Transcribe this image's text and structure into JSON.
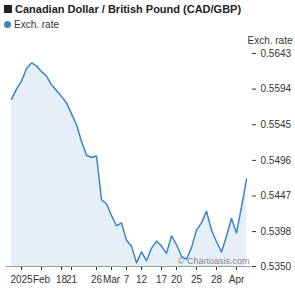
{
  "chart_data": {
    "type": "line",
    "title": "Canadian Dollar / British Pound (CAD/GBP)",
    "y_label": "Exch. rate",
    "annotations": [
      "© Chartoasis.com"
    ],
    "categories": [
      null,
      null,
      "2025",
      null,
      null,
      null,
      "Feb",
      null,
      null,
      null,
      "18",
      null,
      "21",
      null,
      null,
      null,
      null,
      "26",
      null,
      null,
      "Mar",
      null,
      null,
      "7",
      null,
      null,
      "12",
      null,
      null,
      null,
      "17",
      null,
      null,
      "20",
      null,
      null,
      null,
      "25",
      null,
      null,
      null,
      "28",
      null,
      null,
      null,
      "Apr",
      null,
      null
    ],
    "series": [
      {
        "name": "Exch. rate",
        "color": "#3d85c6",
        "values": [
          0.558,
          0.5594,
          0.5605,
          0.5622,
          0.563,
          0.5626,
          0.5618,
          0.5612,
          0.56,
          0.5592,
          0.5584,
          0.5575,
          0.556,
          0.5545,
          0.5522,
          0.5503,
          0.55,
          0.5502,
          0.5442,
          0.5436,
          0.542,
          0.5406,
          0.541,
          0.5386,
          0.5378,
          0.5355,
          0.537,
          0.5358,
          0.5375,
          0.5385,
          0.5378,
          0.5368,
          0.5392,
          0.538,
          0.5364,
          0.536,
          0.5376,
          0.54,
          0.541,
          0.5426,
          0.54,
          0.5384,
          0.537,
          0.5392,
          0.5416,
          0.5396,
          0.5432,
          0.547
        ]
      }
    ],
    "ylim": [
      0.535,
      0.5643
    ],
    "yticks": [
      0.5643,
      0.5594,
      0.5545,
      0.5496,
      0.5447,
      0.5398,
      {
        "value": 0.535,
        "label": "0.5350"
      }
    ],
    "grid": false,
    "legend": "top-left"
  }
}
